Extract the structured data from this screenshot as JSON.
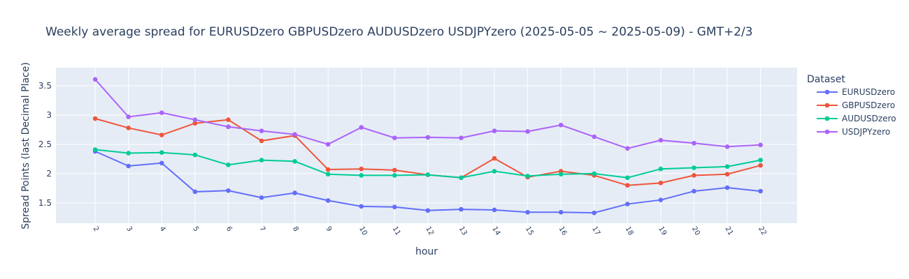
{
  "chart_data": {
    "type": "line",
    "title": "Weekly average spread for  EURUSDzero GBPUSDzero AUDUSDzero USDJPYzero (2025-05-05 ~ 2025-05-09) - GMT+2/3",
    "xlabel": "hour",
    "ylabel": "Spread Points (last Decimal Place)",
    "legend_title": "Dataset",
    "legend_position": "right",
    "grid": true,
    "x": [
      2,
      3,
      4,
      5,
      6,
      7,
      8,
      9,
      10,
      11,
      12,
      13,
      14,
      15,
      16,
      17,
      18,
      19,
      20,
      21,
      22
    ],
    "xlim": [
      0.82,
      23.1
    ],
    "ylim": [
      1.153,
      3.81
    ],
    "yticks": [
      1.5,
      2,
      2.5,
      3,
      3.5
    ],
    "ytick_labels": [
      "1.5",
      "2",
      "2.5",
      "3",
      "3.5"
    ],
    "series": [
      {
        "name": "EURUSDzero",
        "color": "#636efa",
        "values": [
          2.38,
          2.13,
          2.18,
          1.69,
          1.71,
          1.59,
          1.67,
          1.54,
          1.44,
          1.43,
          1.37,
          1.39,
          1.38,
          1.34,
          1.34,
          1.33,
          1.48,
          1.55,
          1.7,
          1.76,
          1.7
        ]
      },
      {
        "name": "GBPUSDzero",
        "color": "#ef553b",
        "values": [
          2.94,
          2.78,
          2.66,
          2.86,
          2.92,
          2.56,
          2.65,
          2.07,
          2.08,
          2.06,
          1.98,
          1.93,
          2.26,
          1.94,
          2.04,
          1.97,
          1.8,
          1.84,
          1.97,
          1.99,
          2.14
        ]
      },
      {
        "name": "AUDUSDzero",
        "color": "#00cc96",
        "values": [
          2.41,
          2.35,
          2.36,
          2.32,
          2.15,
          2.23,
          2.21,
          1.99,
          1.97,
          1.97,
          1.98,
          1.93,
          2.04,
          1.96,
          1.99,
          2.0,
          1.93,
          2.08,
          2.1,
          2.12,
          2.23
        ]
      },
      {
        "name": "USDJPYzero",
        "color": "#ab63fa",
        "values": [
          3.61,
          2.97,
          3.04,
          2.92,
          2.8,
          2.73,
          2.67,
          2.5,
          2.79,
          2.61,
          2.62,
          2.61,
          2.73,
          2.72,
          2.83,
          2.63,
          2.43,
          2.57,
          2.52,
          2.46,
          2.49
        ]
      }
    ]
  }
}
